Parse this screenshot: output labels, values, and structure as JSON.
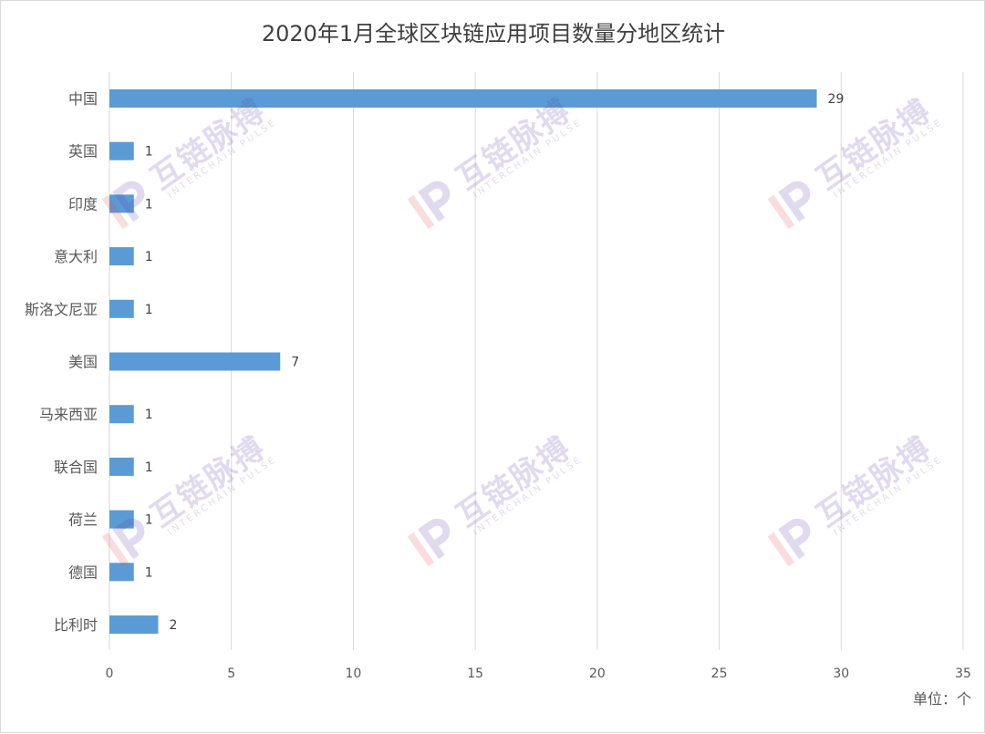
{
  "chart_data": {
    "type": "bar",
    "orientation": "horizontal",
    "title": "2020年1月全球区块链应用项目数量分地区统计",
    "categories": [
      "中国",
      "英国",
      "印度",
      "意大利",
      "斯洛文尼亚",
      "美国",
      "马来西亚",
      "联合国",
      "荷兰",
      "德国",
      "比利时"
    ],
    "values": [
      29,
      1,
      1,
      1,
      1,
      7,
      1,
      1,
      1,
      1,
      2
    ],
    "xlabel": "",
    "ylabel": "",
    "xlim": [
      0,
      35
    ],
    "x_ticks": [
      "0",
      "5",
      "10",
      "15",
      "20",
      "25",
      "30",
      "35"
    ],
    "unit_label": "单位：个",
    "grid": "vertical",
    "data_labels": true,
    "bar_color": "#5b9bd5",
    "gridline_color": "#d9d9d9"
  },
  "watermark": {
    "brand_cn": "互链脉搏",
    "brand_en": "INTERCHAIN PULSE",
    "color": "#5b3aa8"
  }
}
